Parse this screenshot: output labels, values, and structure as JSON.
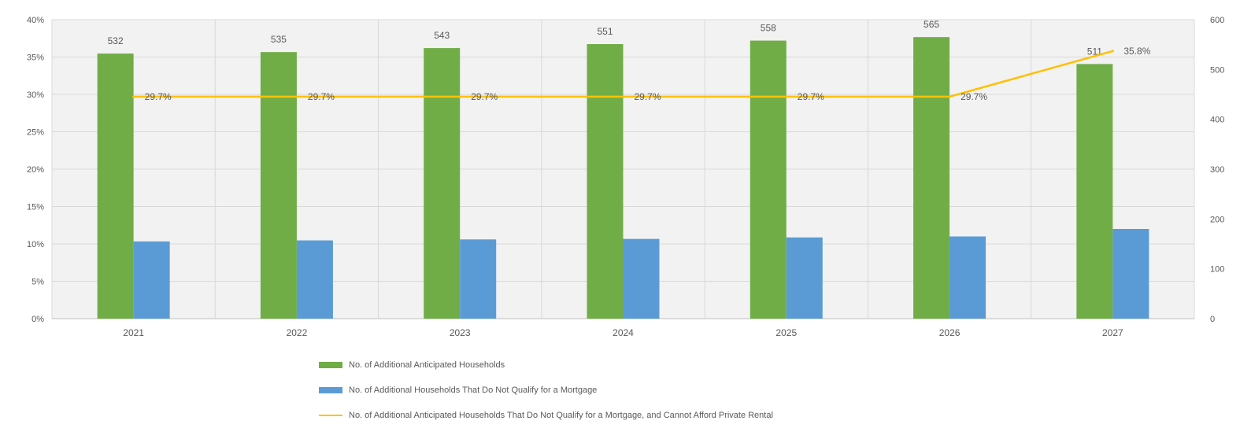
{
  "chart_data": {
    "type": "bar",
    "categories": [
      "2021",
      "2022",
      "2023",
      "2024",
      "2025",
      "2026",
      "2027"
    ],
    "series": [
      {
        "name": "No. of Additional Anticipated Households",
        "axis": "right",
        "type": "bar",
        "values": [
          532,
          535,
          543,
          551,
          558,
          565,
          511
        ],
        "labels": [
          "532",
          "535",
          "543",
          "551",
          "558",
          "565",
          "511"
        ],
        "color": "#70ad47"
      },
      {
        "name": "No. of Additional Households That Do Not Qualify for a Mortgage",
        "axis": "right",
        "type": "bar",
        "values": [
          155,
          157,
          159,
          160,
          163,
          165,
          180
        ],
        "color": "#5b9bd5"
      },
      {
        "name": "No. of Additional Anticipated Households That Do Not Qualify for a Mortgage, and Cannot Afford Private Rental",
        "axis": "left",
        "type": "line",
        "values": [
          29.7,
          29.7,
          29.7,
          29.7,
          29.7,
          29.7,
          35.8
        ],
        "labels": [
          "29.7%",
          "29.7%",
          "29.7%",
          "29.7%",
          "29.7%",
          "29.7%",
          "35.8%"
        ],
        "color": "#ffc000"
      }
    ],
    "left_axis": {
      "min": 0,
      "max": 40,
      "ticks": [
        "0%",
        "5%",
        "10%",
        "15%",
        "20%",
        "25%",
        "30%",
        "35%",
        "40%"
      ]
    },
    "right_axis": {
      "min": 0,
      "max": 600,
      "ticks": [
        "0",
        "100",
        "200",
        "300",
        "400",
        "500",
        "600"
      ]
    },
    "grid": true,
    "legend_position": "bottom"
  }
}
